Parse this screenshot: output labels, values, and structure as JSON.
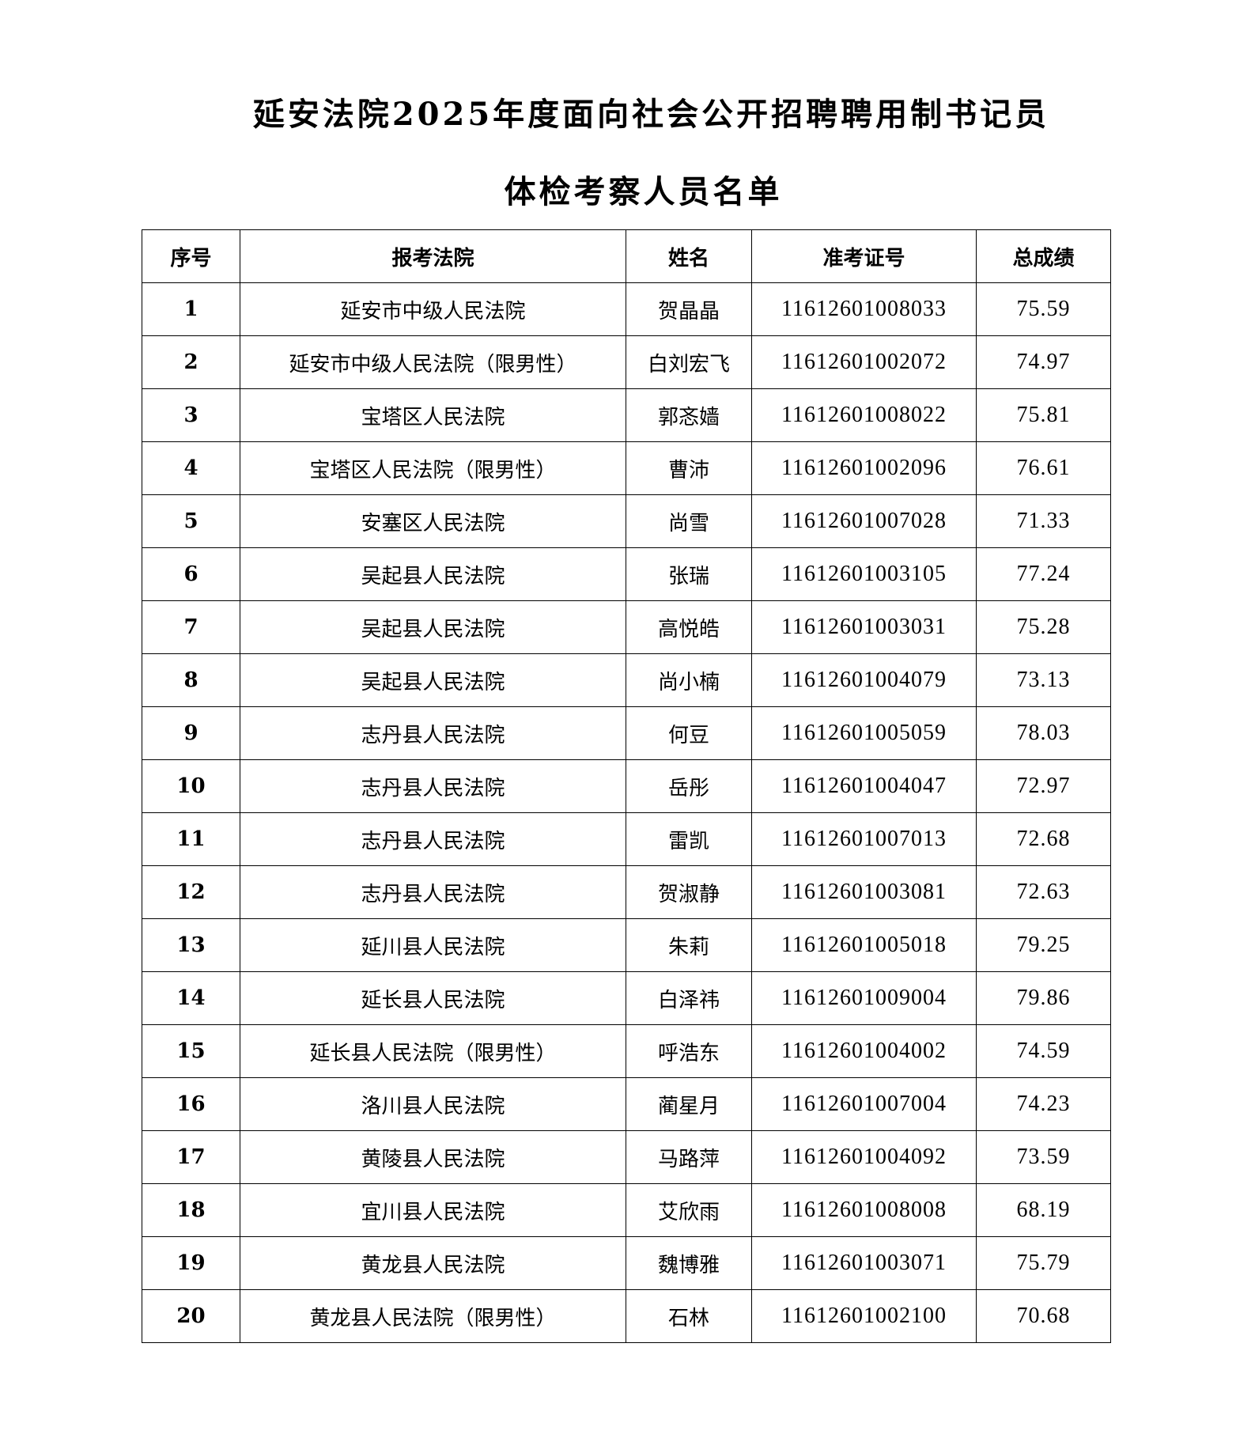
{
  "document": {
    "title_line1": "延安法院2025年度面向社会公开招聘聘用制书记员",
    "title_line2": "体检考察人员名单"
  },
  "table": {
    "headers": [
      "序号",
      "报考法院",
      "姓名",
      "准考证号",
      "总成绩"
    ],
    "rows": [
      [
        "1",
        "延安市中级人民法院",
        "贺晶晶",
        "11612601008033",
        "75.59"
      ],
      [
        "2",
        "延安市中级人民法院（限男性）",
        "白刘宏飞",
        "11612601002072",
        "74.97"
      ],
      [
        "3",
        "宝塔区人民法院",
        "郭忞嫱",
        "11612601008022",
        "75.81"
      ],
      [
        "4",
        "宝塔区人民法院（限男性）",
        "曹沛",
        "11612601002096",
        "76.61"
      ],
      [
        "5",
        "安塞区人民法院",
        "尚雪",
        "11612601007028",
        "71.33"
      ],
      [
        "6",
        "吴起县人民法院",
        "张瑞",
        "11612601003105",
        "77.24"
      ],
      [
        "7",
        "吴起县人民法院",
        "高悦皓",
        "11612601003031",
        "75.28"
      ],
      [
        "8",
        "吴起县人民法院",
        "尚小楠",
        "11612601004079",
        "73.13"
      ],
      [
        "9",
        "志丹县人民法院",
        "何豆",
        "11612601005059",
        "78.03"
      ],
      [
        "10",
        "志丹县人民法院",
        "岳彤",
        "11612601004047",
        "72.97"
      ],
      [
        "11",
        "志丹县人民法院",
        "雷凯",
        "11612601007013",
        "72.68"
      ],
      [
        "12",
        "志丹县人民法院",
        "贺淑静",
        "11612601003081",
        "72.63"
      ],
      [
        "13",
        "延川县人民法院",
        "朱莉",
        "11612601005018",
        "79.25"
      ],
      [
        "14",
        "延长县人民法院",
        "白泽祎",
        "11612601009004",
        "79.86"
      ],
      [
        "15",
        "延长县人民法院（限男性）",
        "呼浩东",
        "11612601004002",
        "74.59"
      ],
      [
        "16",
        "洛川县人民法院",
        "蔺星月",
        "11612601007004",
        "74.23"
      ],
      [
        "17",
        "黄陵县人民法院",
        "马路萍",
        "11612601004092",
        "73.59"
      ],
      [
        "18",
        "宜川县人民法院",
        "艾欣雨",
        "11612601008008",
        "68.19"
      ],
      [
        "19",
        "黄龙县人民法院",
        "魏博雅",
        "11612601003071",
        "75.79"
      ],
      [
        "20",
        "黄龙县人民法院（限男性）",
        "石林",
        "11612601002100",
        "70.68"
      ]
    ]
  }
}
